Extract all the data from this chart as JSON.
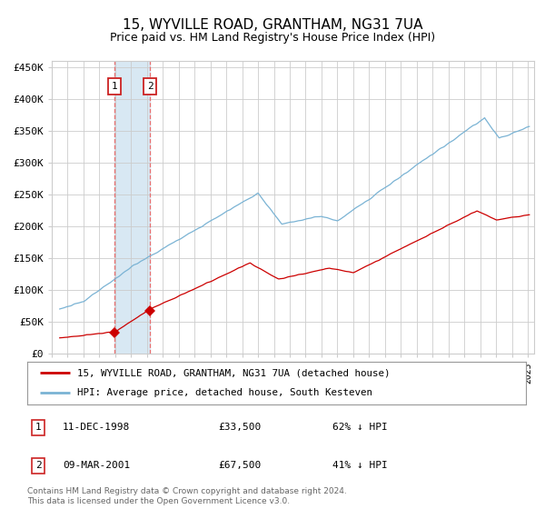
{
  "title": "15, WYVILLE ROAD, GRANTHAM, NG31 7UA",
  "subtitle": "Price paid vs. HM Land Registry's House Price Index (HPI)",
  "title_fontsize": 11,
  "subtitle_fontsize": 9,
  "ylim": [
    0,
    460000
  ],
  "yticks": [
    0,
    50000,
    100000,
    150000,
    200000,
    250000,
    300000,
    350000,
    400000,
    450000
  ],
  "ytick_labels": [
    "£0",
    "£50K",
    "£100K",
    "£150K",
    "£200K",
    "£250K",
    "£300K",
    "£350K",
    "£400K",
    "£450K"
  ],
  "hpi_color": "#7ab3d4",
  "price_color": "#cc0000",
  "marker_color": "#cc0000",
  "grid_color": "#cccccc",
  "bg_color": "#ffffff",
  "highlight_color": "#d8e8f3",
  "dashed_line_color": "#e87070",
  "transaction1_date_num": 1998.94,
  "transaction1_price": 33500,
  "transaction2_date_num": 2001.19,
  "transaction2_price": 67500,
  "legend_label_red": "15, WYVILLE ROAD, GRANTHAM, NG31 7UA (detached house)",
  "legend_label_blue": "HPI: Average price, detached house, South Kesteven",
  "table_entries": [
    {
      "num": "1",
      "date": "11-DEC-1998",
      "price": "£33,500",
      "pct": "62% ↓ HPI"
    },
    {
      "num": "2",
      "date": "09-MAR-2001",
      "price": "£67,500",
      "pct": "41% ↓ HPI"
    }
  ],
  "footnote": "Contains HM Land Registry data © Crown copyright and database right 2024.\nThis data is licensed under the Open Government Licence v3.0.",
  "xstart": 1995.25,
  "xend": 2025.4
}
